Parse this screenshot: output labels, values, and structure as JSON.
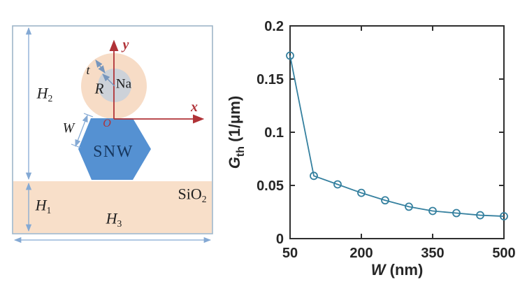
{
  "diagram": {
    "labels": {
      "h2": {
        "base": "H",
        "sub": "2"
      },
      "h1": {
        "base": "H",
        "sub": "1"
      },
      "h3": {
        "base": "H",
        "sub": "3"
      },
      "substrate": {
        "base": "SiO",
        "sub": "2"
      },
      "nanowire": "SNW",
      "core": "Na",
      "radius": "R",
      "thickness": "t",
      "width": "W",
      "axis_x": "x",
      "axis_y": "y",
      "origin": "O"
    }
  },
  "colors": {
    "substrate": "#f8dfc9",
    "clad": "#f7dcc6",
    "core": "#cdd2d9",
    "hexagon": "#5591d2",
    "axis_red": "#b03237",
    "dim_blue": "#84a9d4",
    "arrow_steel": "#7796bd",
    "line": "#35809f",
    "axis_dark": "#2f2f2f",
    "snw_text": "#17375e",
    "box_border": "#9eb6c8"
  },
  "chart_data": {
    "type": "line",
    "series": [
      {
        "name": "Gth",
        "x": [
          50,
          100,
          150,
          200,
          250,
          300,
          350,
          400,
          450,
          500
        ],
        "values": [
          0.172,
          0.059,
          0.051,
          0.043,
          0.036,
          0.03,
          0.026,
          0.024,
          0.022,
          0.021
        ]
      }
    ],
    "marker": "o",
    "xlabel": {
      "italic": "W",
      "rest": " (nm)"
    },
    "ylabel": {
      "italic": "G",
      "sub": "th",
      "rest": " (1/μm)"
    },
    "xlim": [
      50,
      500
    ],
    "ylim": [
      0,
      0.2
    ],
    "xticks": [
      50,
      200,
      350,
      500
    ],
    "xtick_labels": [
      "50",
      "200",
      "350",
      "500"
    ],
    "yticks": [
      0,
      0.05,
      0.1,
      0.15,
      0.2
    ],
    "ytick_labels": [
      "0",
      "0.05",
      "0.1",
      "0.15",
      "0.2"
    ],
    "grid": false,
    "legend": null
  }
}
